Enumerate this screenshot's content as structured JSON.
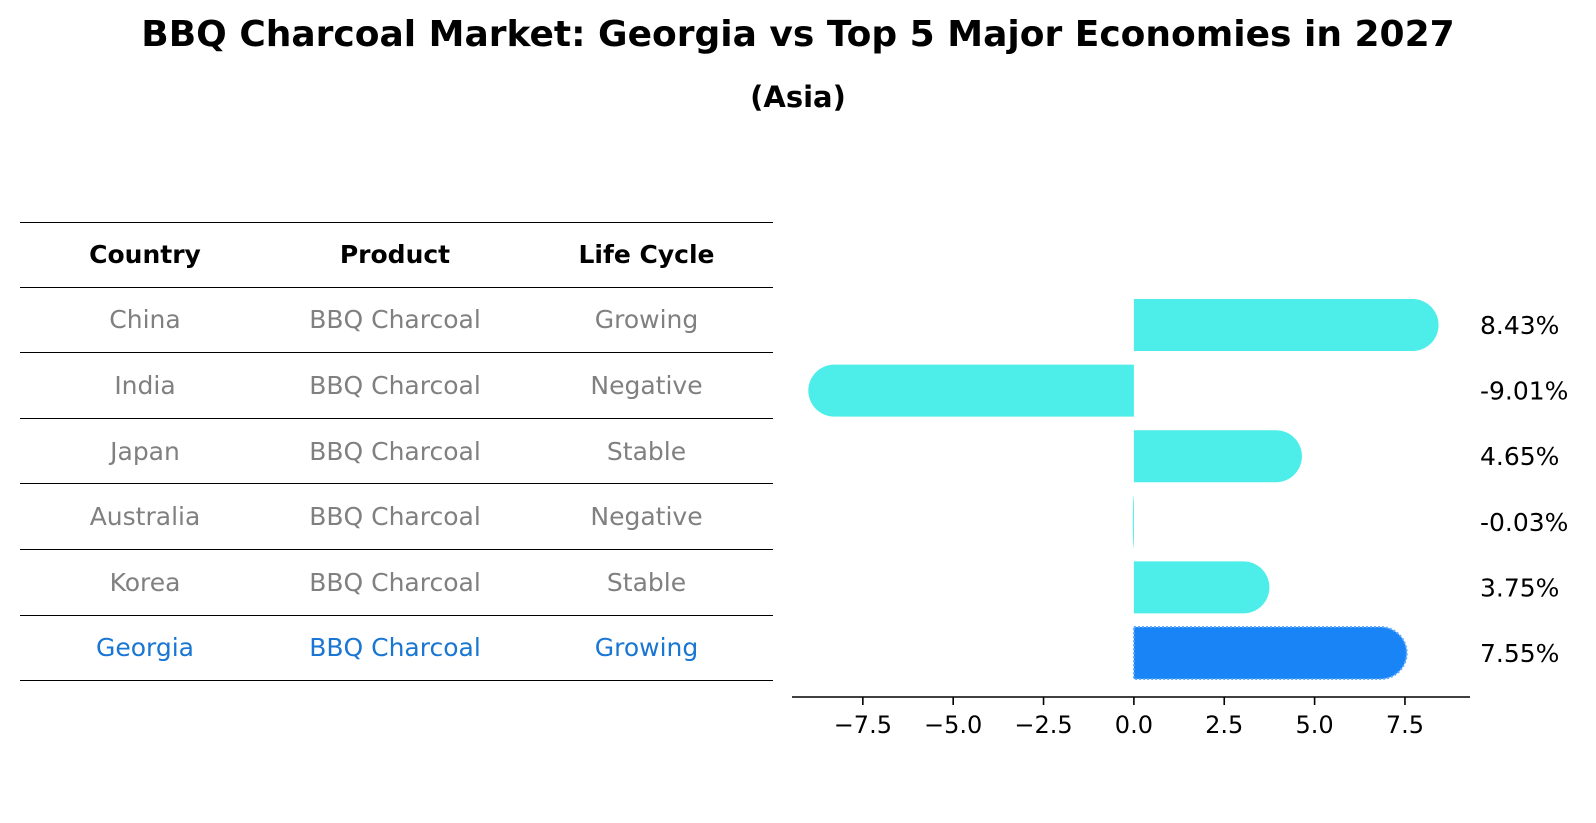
{
  "title": "BBQ Charcoal Market: Georgia vs Top 5 Major Economies in 2027",
  "subtitle": "(Asia)",
  "table": {
    "headers": [
      "Country",
      "Product",
      "Life Cycle"
    ],
    "rows": [
      {
        "country": "China",
        "product": "BBQ Charcoal",
        "life_cycle": "Growing"
      },
      {
        "country": "India",
        "product": "BBQ Charcoal",
        "life_cycle": "Negative"
      },
      {
        "country": "Japan",
        "product": "BBQ Charcoal",
        "life_cycle": "Stable"
      },
      {
        "country": "Australia",
        "product": "BBQ Charcoal",
        "life_cycle": "Negative"
      },
      {
        "country": "Korea",
        "product": "BBQ Charcoal",
        "life_cycle": "Stable"
      },
      {
        "country": "Georgia",
        "product": "BBQ Charcoal",
        "life_cycle": "Growing"
      }
    ]
  },
  "colors": {
    "bar": "#4deeea",
    "highlight": "#1984f5",
    "highlight_text": "#1976d2",
    "muted_text": "#808080"
  },
  "chart_data": {
    "type": "bar",
    "orientation": "horizontal",
    "categories": [
      "China",
      "India",
      "Japan",
      "Australia",
      "Korea",
      "Georgia"
    ],
    "values": [
      8.43,
      -9.01,
      4.65,
      -0.03,
      3.75,
      7.55
    ],
    "value_labels": [
      "8.43%",
      "-9.01%",
      "4.65%",
      "-0.03%",
      "3.75%",
      "7.55%"
    ],
    "highlight_index": 5,
    "xlim": [
      -9.46,
      9.3
    ],
    "xticks": [
      -7.5,
      -5.0,
      -2.5,
      0.0,
      2.5,
      5.0,
      7.5
    ],
    "xtick_labels": [
      "−7.5",
      "−5.0",
      "−2.5",
      "0.0",
      "2.5",
      "5.0",
      "7.5"
    ],
    "title": "BBQ Charcoal Market: Georgia vs Top 5 Major Economies in 2027",
    "xlabel": "",
    "ylabel": ""
  }
}
